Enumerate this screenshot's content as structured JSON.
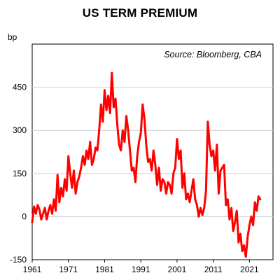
{
  "chart_data": {
    "type": "line",
    "title": "US TERM PREMIUM",
    "ylabel": "bp",
    "xlabel": "",
    "annotation": "Source: Bloomberg, CBA",
    "xlim": [
      1961,
      2027.5
    ],
    "ylim": [
      -150,
      600
    ],
    "yticks": [
      -150,
      0,
      150,
      300,
      450
    ],
    "xticks": [
      1961,
      1971,
      1981,
      1991,
      2001,
      2011,
      2021
    ],
    "grid": true,
    "legend": "none",
    "line_color": "#ff0000",
    "series": [
      {
        "x": [
          1961,
          1961.5,
          1962,
          1962.5,
          1963,
          1963.5,
          1964,
          1964.5,
          1965,
          1965.5,
          1966,
          1966.5,
          1967,
          1967.5,
          1968,
          1968.5,
          1969,
          1969.5,
          1970,
          1970.5,
          1971,
          1971.5,
          1972,
          1972.5,
          1973,
          1973.5,
          1974,
          1974.5,
          1975,
          1975.5,
          1976,
          1976.5,
          1977,
          1977.5,
          1978,
          1978.5,
          1979,
          1979.5,
          1980,
          1980.5,
          1981,
          1981.5,
          1982,
          1982.5,
          1983,
          1983.5,
          1984,
          1984.5,
          1985,
          1985.5,
          1986,
          1986.5,
          1987,
          1987.5,
          1988,
          1988.5,
          1989,
          1989.5,
          1990,
          1990.5,
          1991,
          1991.5,
          1992,
          1992.5,
          1993,
          1993.5,
          1994,
          1994.5,
          1995,
          1995.5,
          1996,
          1996.5,
          1997,
          1997.5,
          1998,
          1998.5,
          1999,
          1999.5,
          2000,
          2000.5,
          2001,
          2001.5,
          2002,
          2002.5,
          2003,
          2003.5,
          2004,
          2004.5,
          2005,
          2005.5,
          2006,
          2006.5,
          2007,
          2007.5,
          2008,
          2008.5,
          2009,
          2009.5,
          2010,
          2010.5,
          2011,
          2011.5,
          2012,
          2012.5,
          2013,
          2013.5,
          2014,
          2014.5,
          2015,
          2015.5,
          2016,
          2016.5,
          2017,
          2017.5,
          2018,
          2018.5,
          2019,
          2019.5,
          2020,
          2020.5,
          2021,
          2021.5,
          2022,
          2022.5,
          2023,
          2023.5,
          2024
        ],
        "values": [
          -20,
          35,
          10,
          40,
          25,
          -10,
          10,
          30,
          -10,
          20,
          40,
          10,
          60,
          20,
          145,
          50,
          100,
          70,
          130,
          90,
          210,
          150,
          100,
          160,
          80,
          120,
          140,
          170,
          210,
          180,
          230,
          200,
          260,
          180,
          200,
          240,
          230,
          300,
          390,
          330,
          440,
          370,
          420,
          360,
          500,
          380,
          410,
          320,
          250,
          230,
          300,
          260,
          350,
          300,
          230,
          160,
          170,
          120,
          210,
          260,
          290,
          390,
          340,
          250,
          190,
          200,
          160,
          230,
          180,
          110,
          170,
          90,
          130,
          120,
          80,
          120,
          110,
          80,
          150,
          170,
          270,
          200,
          230,
          100,
          150,
          60,
          80,
          50,
          90,
          130,
          60,
          40,
          0,
          30,
          5,
          30,
          90,
          330,
          250,
          210,
          230,
          160,
          250,
          80,
          160,
          170,
          180,
          40,
          60,
          -10,
          30,
          -50,
          -20,
          20,
          -90,
          -60,
          -120,
          -100,
          -140,
          -70,
          -30,
          0,
          -30,
          50,
          20,
          70,
          60
        ]
      }
    ]
  }
}
